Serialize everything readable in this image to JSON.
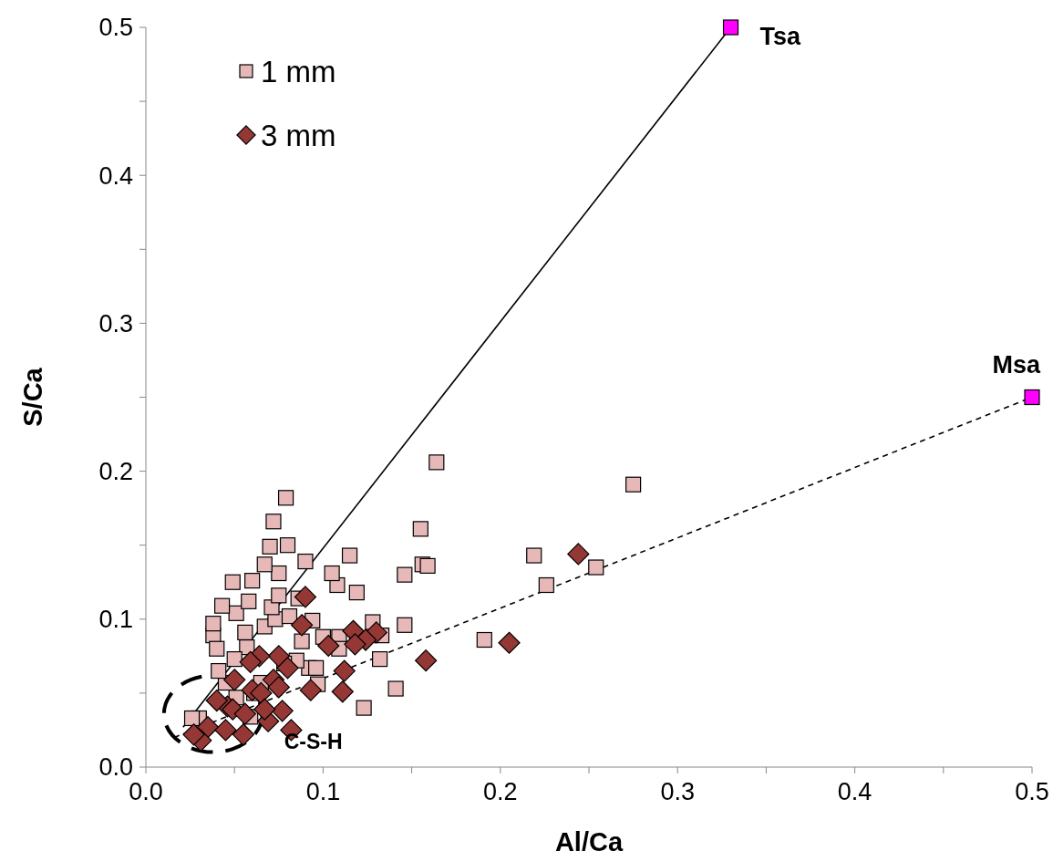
{
  "chart_data": {
    "type": "scatter",
    "xlabel": "Al/Ca",
    "ylabel": "S/Ca",
    "legend": "top left",
    "grid": false,
    "xlim": [
      0,
      0.5
    ],
    "ylim": [
      0,
      0.5
    ],
    "xticks": [
      {
        "value": 0,
        "label": "0.0"
      },
      {
        "value": 0.05,
        "label": null
      },
      {
        "value": 0.1,
        "label": "0.1"
      },
      {
        "value": 0.15,
        "label": null
      },
      {
        "value": 0.2,
        "label": "0.2"
      },
      {
        "value": 0.25,
        "label": null
      },
      {
        "value": 0.3,
        "label": "0.3"
      },
      {
        "value": 0.35,
        "label": null
      },
      {
        "value": 0.4,
        "label": "0.4"
      },
      {
        "value": 0.45,
        "label": null
      },
      {
        "value": 0.5,
        "label": "0.5"
      }
    ],
    "yticks": [
      {
        "value": 0,
        "label": "0.0"
      },
      {
        "value": 0.05,
        "label": null
      },
      {
        "value": 0.1,
        "label": "0.1"
      },
      {
        "value": 0.15,
        "label": null
      },
      {
        "value": 0.2,
        "label": "0.2"
      },
      {
        "value": 0.25,
        "label": null
      },
      {
        "value": 0.3,
        "label": "0.3"
      },
      {
        "value": 0.35,
        "label": null
      },
      {
        "value": 0.4,
        "label": "0.4"
      },
      {
        "value": 0.45,
        "label": null
      },
      {
        "value": 0.5,
        "label": "0.5"
      }
    ],
    "series": [
      {
        "type": "line",
        "color": "#000000",
        "line_style": "solid",
        "x": [
          0.021,
          0.33
        ],
        "values": [
          0.027,
          0.5
        ]
      },
      {
        "type": "line",
        "color": "#000000",
        "line_style": "dashed",
        "x": [
          0.016,
          0.5
        ],
        "values": [
          0.02,
          0.25
        ]
      },
      {
        "name": "1 mm",
        "marker": "square",
        "color": "#e6b8b7",
        "x": [
          0.079,
          0.072,
          0.08,
          0.07,
          0.115,
          0.164,
          0.155,
          0.156,
          0.159,
          0.146,
          0.275,
          0.219,
          0.226,
          0.254,
          0.191,
          0.146,
          0.141,
          0.123,
          0.132,
          0.133,
          0.128,
          0.119,
          0.108,
          0.105,
          0.09,
          0.075,
          0.067,
          0.06,
          0.049,
          0.051,
          0.043,
          0.038,
          0.038,
          0.04,
          0.056,
          0.067,
          0.073,
          0.088,
          0.094,
          0.1,
          0.109,
          0.109,
          0.092,
          0.096,
          0.097,
          0.085,
          0.071,
          0.078,
          0.045,
          0.041,
          0.03,
          0.026,
          0.059,
          0.051,
          0.065,
          0.057,
          0.05,
          0.061,
          0.086,
          0.075,
          0.058,
          0.081
        ],
        "values": [
          0.182,
          0.166,
          0.15,
          0.149,
          0.143,
          0.206,
          0.161,
          0.137,
          0.136,
          0.13,
          0.191,
          0.143,
          0.123,
          0.135,
          0.086,
          0.096,
          0.053,
          0.04,
          0.073,
          0.089,
          0.098,
          0.118,
          0.123,
          0.131,
          0.139,
          0.131,
          0.137,
          0.126,
          0.125,
          0.104,
          0.109,
          0.089,
          0.097,
          0.08,
          0.091,
          0.095,
          0.1,
          0.085,
          0.099,
          0.088,
          0.088,
          0.08,
          0.067,
          0.067,
          0.056,
          0.072,
          0.108,
          0.07,
          0.057,
          0.065,
          0.033,
          0.033,
          0.034,
          0.047,
          0.057,
          0.081,
          0.073,
          0.05,
          0.114,
          0.116,
          0.112,
          0.102
        ]
      },
      {
        "name": "3 mm",
        "marker": "diamond",
        "color": "#953735",
        "x": [
          0.244,
          0.205,
          0.158,
          0.117,
          0.13,
          0.124,
          0.118,
          0.103,
          0.09,
          0.088,
          0.075,
          0.08,
          0.112,
          0.111,
          0.093,
          0.077,
          0.082,
          0.069,
          0.064,
          0.059,
          0.05,
          0.046,
          0.04,
          0.035,
          0.031,
          0.027,
          0.045,
          0.055,
          0.049,
          0.06,
          0.065,
          0.072,
          0.056,
          0.067,
          0.075
        ],
        "values": [
          0.144,
          0.084,
          0.072,
          0.092,
          0.091,
          0.086,
          0.083,
          0.082,
          0.115,
          0.096,
          0.075,
          0.067,
          0.065,
          0.051,
          0.052,
          0.038,
          0.025,
          0.031,
          0.075,
          0.071,
          0.059,
          0.041,
          0.045,
          0.027,
          0.018,
          0.022,
          0.025,
          0.022,
          0.039,
          0.052,
          0.05,
          0.059,
          0.036,
          0.039,
          0.054
        ]
      },
      {
        "marker": "square",
        "color": "#ff00ff",
        "x": [
          0.33,
          0.5
        ],
        "values": [
          0.5,
          0.25
        ]
      }
    ],
    "annotations": [
      {
        "text": "Tsa",
        "x": 0.33,
        "y": 0.5
      },
      {
        "text": "Msa",
        "x": 0.5,
        "y": 0.25
      },
      "C-S-H"
    ]
  }
}
